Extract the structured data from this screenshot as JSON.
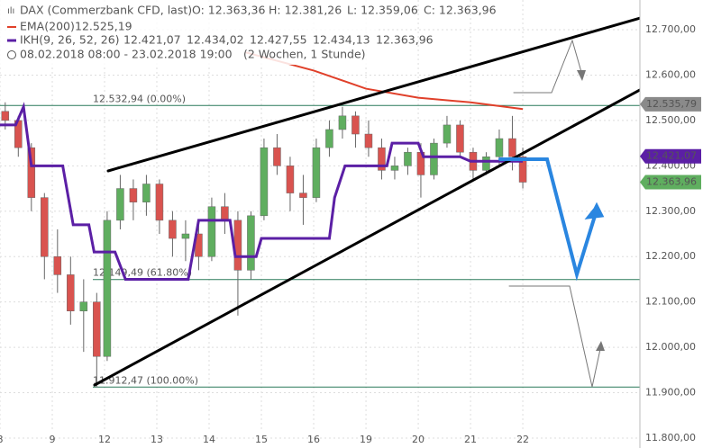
{
  "header": {
    "symbol": "DAX (Commerzbank CFD, last)",
    "ohlc": [
      "O: 12.363,36",
      "H: 12.381,26",
      "L: 12.359,06",
      "C: 12.363,96"
    ],
    "ema_label": "EMA(200)",
    "ema_value": "12.525,19",
    "ikh_label": "IKH(9, 26, 52, 26)",
    "ikh_values": [
      "12.421,07",
      "12.434,02",
      "12.427,55",
      "12.434,13",
      "12.363,96"
    ],
    "range": "08.02.2018 08:00 - 23.02.2018 19:00",
    "period": "(2 Wochen, 1 Stunde)"
  },
  "chart_data": {
    "type": "candlestick",
    "categories": [
      "8",
      "9",
      "12",
      "13",
      "14",
      "15",
      "16",
      "19",
      "20",
      "21",
      "22"
    ],
    "xlim": [
      0,
      12.24
    ],
    "ylim": [
      11800,
      12700
    ],
    "yticks": [
      {
        "value": 11800,
        "label": "11.800,00"
      },
      {
        "value": 11900,
        "label": "11.900,00"
      },
      {
        "value": 12000,
        "label": "12.000,00"
      },
      {
        "value": 12100,
        "label": "12.100,00"
      },
      {
        "value": 12200,
        "label": "12.200,00"
      },
      {
        "value": 12300,
        "label": "12.300,00"
      },
      {
        "value": 12400,
        "label": "12.400,00"
      },
      {
        "value": 12500,
        "label": "12.500,00"
      },
      {
        "value": 12600,
        "label": "12.600,00"
      },
      {
        "value": 12700,
        "label": "12.700,00"
      }
    ],
    "grid": true,
    "up_color": "#5fae5f",
    "down_color": "#d9534f",
    "candles": {
      "x": [
        0.1,
        0.35,
        0.6,
        0.85,
        1.1,
        1.35,
        1.6,
        1.85,
        2.05,
        2.3,
        2.55,
        2.8,
        3.05,
        3.3,
        3.55,
        3.8,
        4.05,
        4.3,
        4.55,
        4.8,
        5.05,
        5.3,
        5.55,
        5.8,
        6.05,
        6.3,
        6.55,
        6.8,
        7.05,
        7.3,
        7.55,
        7.8,
        8.05,
        8.3,
        8.55,
        8.8,
        9.05,
        9.3,
        9.55,
        9.8,
        10.0
      ],
      "ohlc": [
        [
          12520,
          12540,
          12480,
          12500
        ],
        [
          12500,
          12510,
          12420,
          12440
        ],
        [
          12440,
          12450,
          12300,
          12330
        ],
        [
          12330,
          12340,
          12150,
          12200
        ],
        [
          12200,
          12260,
          12120,
          12160
        ],
        [
          12160,
          12200,
          12050,
          12080
        ],
        [
          12080,
          12150,
          11990,
          12100
        ],
        [
          12100,
          12120,
          11912,
          11980
        ],
        [
          11980,
          12300,
          11970,
          12280
        ],
        [
          12280,
          12380,
          12260,
          12350
        ],
        [
          12350,
          12370,
          12280,
          12320
        ],
        [
          12320,
          12380,
          12290,
          12360
        ],
        [
          12360,
          12370,
          12250,
          12280
        ],
        [
          12280,
          12300,
          12200,
          12240
        ],
        [
          12240,
          12280,
          12190,
          12250
        ],
        [
          12250,
          12270,
          12170,
          12200
        ],
        [
          12200,
          12330,
          12190,
          12310
        ],
        [
          12310,
          12340,
          12250,
          12280
        ],
        [
          12280,
          12300,
          12070,
          12170
        ],
        [
          12170,
          12300,
          12150,
          12290
        ],
        [
          12290,
          12460,
          12280,
          12440
        ],
        [
          12440,
          12470,
          12380,
          12400
        ],
        [
          12400,
          12420,
          12300,
          12340
        ],
        [
          12340,
          12380,
          12270,
          12330
        ],
        [
          12330,
          12460,
          12320,
          12440
        ],
        [
          12440,
          12500,
          12420,
          12480
        ],
        [
          12480,
          12530,
          12460,
          12510
        ],
        [
          12510,
          12520,
          12440,
          12470
        ],
        [
          12470,
          12500,
          12420,
          12440
        ],
        [
          12440,
          12460,
          12370,
          12390
        ],
        [
          12390,
          12420,
          12370,
          12400
        ],
        [
          12400,
          12440,
          12380,
          12430
        ],
        [
          12430,
          12450,
          12330,
          12380
        ],
        [
          12380,
          12460,
          12370,
          12450
        ],
        [
          12450,
          12510,
          12440,
          12490
        ],
        [
          12490,
          12500,
          12420,
          12430
        ],
        [
          12430,
          12440,
          12370,
          12390
        ],
        [
          12390,
          12430,
          12380,
          12420
        ],
        [
          12420,
          12480,
          12400,
          12460
        ],
        [
          12460,
          12510,
          12390,
          12420
        ],
        [
          12420,
          12440,
          12350,
          12363.96
        ]
      ]
    },
    "series": [
      {
        "name": "EMA(200)",
        "color": "#e0402a",
        "x": [
          4.7,
          6,
          7,
          8,
          9,
          10
        ],
        "values": [
          12650,
          12610,
          12570,
          12550,
          12540,
          12525
        ]
      },
      {
        "name": "IKH",
        "color": "#5b1fa5",
        "x": [
          0,
          0.3,
          0.45,
          0.6,
          1.2,
          1.4,
          1.7,
          1.8,
          2.2,
          2.4,
          3.6,
          3.8,
          4.4,
          4.5,
          4.9,
          5.0,
          6.3,
          6.4,
          6.6,
          7.4,
          7.5,
          8.0,
          8.1,
          8.8,
          9.0,
          10.0
        ],
        "values": [
          12490,
          12490,
          12530,
          12400,
          12400,
          12270,
          12270,
          12210,
          12210,
          12150,
          12150,
          12280,
          12280,
          12200,
          12200,
          12240,
          12240,
          12330,
          12400,
          12400,
          12450,
          12450,
          12420,
          12420,
          12410,
          12410
        ]
      }
    ],
    "fib_levels": [
      {
        "value": 12532.94,
        "label": "12.532,94 (0.00%)"
      },
      {
        "value": 12149.49,
        "label": "12.149,49 (61.80%)"
      },
      {
        "value": 11912.47,
        "label": "11.912,47 (100.00%)"
      }
    ],
    "badges": [
      {
        "value": 12535.79,
        "label": "12.535,79",
        "color": "#8a8a8a"
      },
      {
        "value": 12421.07,
        "label": "12.421,07",
        "color": "#5b1fa5"
      },
      {
        "value": 12363.96,
        "label": "12.363,96",
        "color": "#5fae5f"
      }
    ]
  }
}
